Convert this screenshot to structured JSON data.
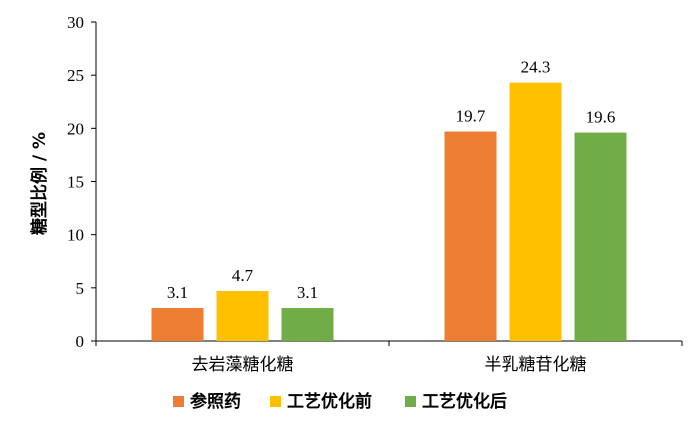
{
  "chart_data": {
    "type": "bar",
    "categories": [
      "去岩藻糖化糖",
      "半乳糖苷化糖"
    ],
    "series": [
      {
        "name": "参照药",
        "values": [
          3.1,
          19.7
        ],
        "color": "#ED7D31"
      },
      {
        "name": "工艺优化前",
        "values": [
          4.7,
          24.3
        ],
        "color": "#FFC000"
      },
      {
        "name": "工艺优化后",
        "values": [
          3.1,
          19.6
        ],
        "color": "#70AD47"
      }
    ],
    "ylabel": "糖型比例 / %",
    "xlabel": "",
    "title": "",
    "ylim": [
      0,
      30
    ],
    "yticks": [
      0,
      5,
      10,
      15,
      20,
      25,
      30
    ],
    "grid": false,
    "legend_position": "bottom"
  }
}
